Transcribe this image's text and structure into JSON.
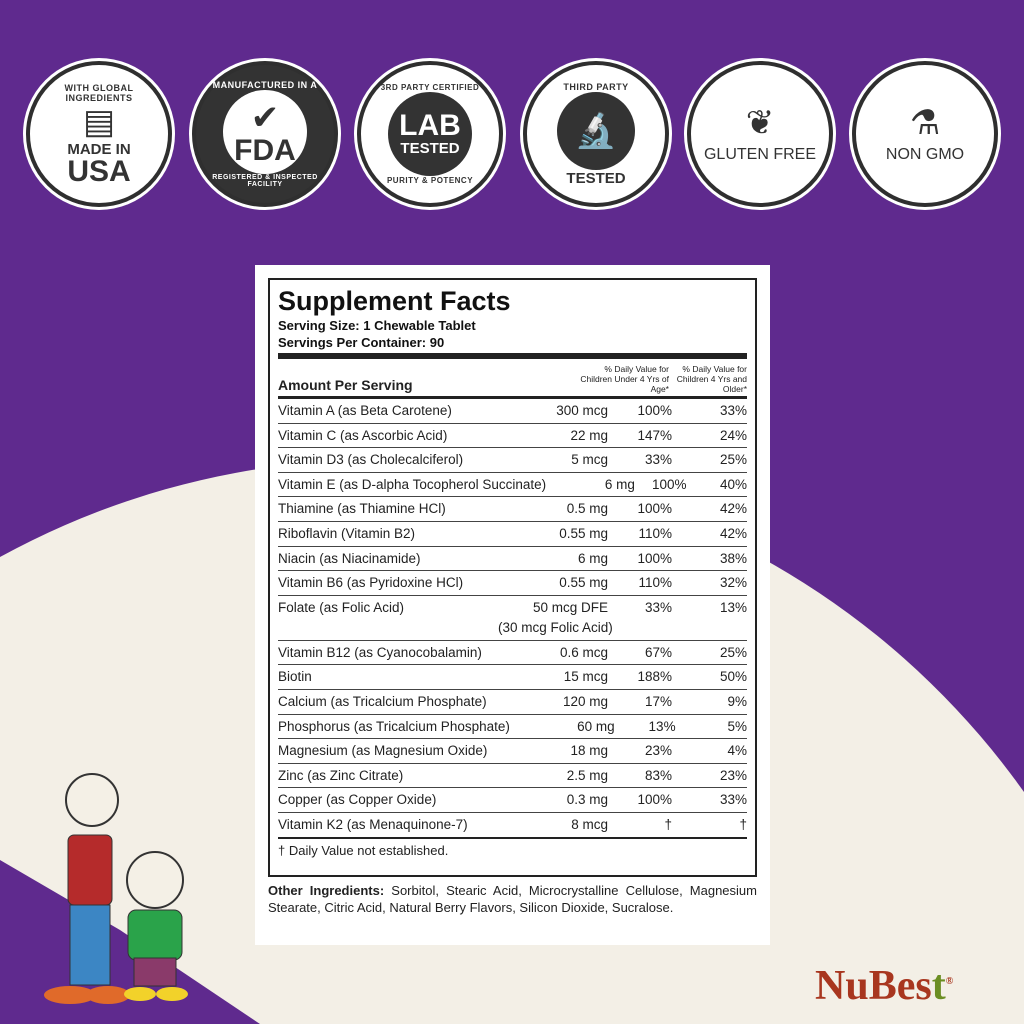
{
  "colors": {
    "purple": "#5f2a8e",
    "cream": "#f3efe6",
    "brand_red": "#a8361f"
  },
  "badges": [
    {
      "arc_top": "WITH GLOBAL INGREDIENTS",
      "line1": "MADE IN",
      "line2": "USA",
      "icon": "us-flag-icon"
    },
    {
      "arc_top": "MANUFACTURED IN A",
      "line1": "FDA",
      "arc_bottom": "REGISTERED & INSPECTED FACILITY",
      "icon": "checkmark-icon"
    },
    {
      "arc_top": "3RD PARTY CERTIFIED",
      "line1": "LAB",
      "line2": "TESTED",
      "arc_bottom": "PURITY & POTENCY"
    },
    {
      "arc_top": "THIRD PARTY",
      "arc_bottom": "TESTED",
      "icon": "microscope-icon"
    },
    {
      "label": "GLUTEN FREE",
      "icon": "wheat-icon"
    },
    {
      "label": "NON GMO",
      "icon": "flask-icon"
    }
  ],
  "facts": {
    "title": "Supplement Facts",
    "serving_size": "Serving Size: 1 Chewable Tablet",
    "servings_per_container": "Servings Per Container: 90",
    "amount_header": "Amount Per Serving",
    "col1_header": "% Daily Value for Children Under 4 Yrs of Age*",
    "col2_header": "% Daily Value for Children 4 Yrs and Older*",
    "rows": [
      {
        "name": "Vitamin A (as Beta Carotene)",
        "amount": "300 mcg",
        "dv1": "100%",
        "dv2": "33%"
      },
      {
        "name": "Vitamin C (as Ascorbic Acid)",
        "amount": "22 mg",
        "dv1": "147%",
        "dv2": "24%"
      },
      {
        "name": "Vitamin D3 (as Cholecalciferol)",
        "amount": "5 mcg",
        "dv1": "33%",
        "dv2": "25%"
      },
      {
        "name": "Vitamin E (as D-alpha Tocopherol Succinate)",
        "amount": "6 mg",
        "dv1": "100%",
        "dv2": "40%"
      },
      {
        "name": "Thiamine (as Thiamine HCl)",
        "amount": "0.5 mg",
        "dv1": "100%",
        "dv2": "42%"
      },
      {
        "name": "Riboflavin (Vitamin B2)",
        "amount": "0.55 mg",
        "dv1": "110%",
        "dv2": "42%"
      },
      {
        "name": "Niacin (as Niacinamide)",
        "amount": "6 mg",
        "dv1": "100%",
        "dv2": "38%"
      },
      {
        "name": "Vitamin B6 (as Pyridoxine HCl)",
        "amount": "0.55 mg",
        "dv1": "110%",
        "dv2": "32%"
      },
      {
        "name": "Folate (as Folic Acid)",
        "amount": "50 mcg DFE",
        "amount2": "(30 mcg Folic Acid)",
        "dv1": "33%",
        "dv2": "13%"
      },
      {
        "name": "Vitamin B12 (as Cyanocobalamin)",
        "amount": "0.6 mcg",
        "dv1": "67%",
        "dv2": "25%"
      },
      {
        "name": "Biotin",
        "amount": "15 mcg",
        "dv1": "188%",
        "dv2": "50%"
      },
      {
        "name": "Calcium (as Tricalcium Phosphate)",
        "amount": "120 mg",
        "dv1": "17%",
        "dv2": "9%"
      },
      {
        "name": "Phosphorus (as Tricalcium Phosphate)",
        "amount": "60 mg",
        "dv1": "13%",
        "dv2": "5%"
      },
      {
        "name": "Magnesium (as Magnesium Oxide)",
        "amount": "18 mg",
        "dv1": "23%",
        "dv2": "4%"
      },
      {
        "name": "Zinc (as Zinc Citrate)",
        "amount": "2.5 mg",
        "dv1": "83%",
        "dv2": "23%"
      },
      {
        "name": "Copper (as Copper Oxide)",
        "amount": "0.3 mg",
        "dv1": "100%",
        "dv2": "33%"
      },
      {
        "name": "Vitamin K2 (as Menaquinone-7)",
        "amount": "8 mcg",
        "dv1": "†",
        "dv2": "†"
      }
    ],
    "footnote": "† Daily Value not established.",
    "other_label": "Other Ingredients:",
    "other_text": " Sorbitol, Stearic Acid, Microcrystalline Cellulose, Magnesium Stearate, Citric Acid, Natural Berry Flavors, Silicon Dioxide, Sucralose."
  },
  "brand": {
    "name_a": "Nu",
    "name_b": "Best",
    "mark": "®"
  }
}
